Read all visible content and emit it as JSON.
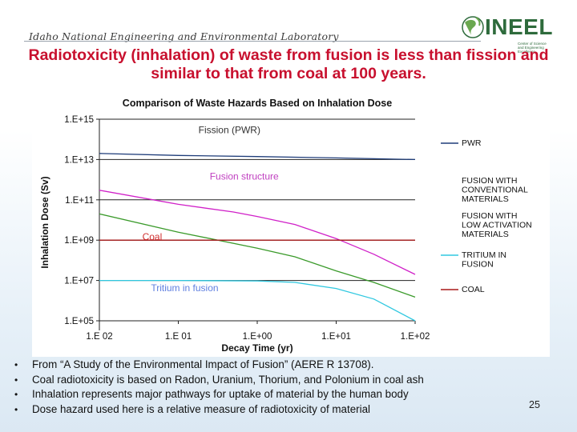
{
  "header": {
    "lab_name": "Idaho National Engineering and Environmental Laboratory",
    "logo_text": "INEEL",
    "logo_subtext": "Center of Science and Engineering Excellence"
  },
  "slide": {
    "title": "Radiotoxicity (inhalation) of waste from fusion is less than fission and similar to that from  coal at 100 years.",
    "page_number": "25"
  },
  "bullets": [
    "From “A Study of the Environmental Impact of Fusion” (AERE R 13708).",
    "Coal radiotoxicity is based on Radon, Uranium, Thorium, and Polonium in coal ash",
    "Inhalation represents major pathways for uptake of material by the human body",
    "Dose hazard used here is a relative measure of radiotoxicity of material"
  ],
  "colors": {
    "title": "#c8102e",
    "pwr": "#1f3d7a",
    "fusion_conventional": "#d020c8",
    "fusion_low_activation": "#3a9a2a",
    "tritium": "#30c8e0",
    "coal": "#a81818"
  },
  "chart_data": {
    "type": "line",
    "title": "Comparison of Waste Hazards Based on Inhalation Dose",
    "xlabel": "Decay Time (yr)",
    "ylabel": "Inhalation Dose (Sv)",
    "x_scale": "log",
    "y_scale": "log",
    "xlim": [
      0.01,
      100
    ],
    "ylim": [
      100000.0,
      1000000000000000.0
    ],
    "x_ticks": [
      0.01,
      0.1,
      1,
      10,
      100
    ],
    "x_tick_labels": [
      "1.E 02",
      "1.E 01",
      "1.E+00",
      "1.E+01",
      "1.E+02"
    ],
    "y_ticks": [
      1000000000000000.0,
      10000000000000.0,
      100000000000.0,
      1000000000.0,
      10000000.0,
      100000.0
    ],
    "y_tick_labels": [
      "1.E+15",
      "1.E+13",
      "1.E+11",
      "1.E+09",
      "1.E+07",
      "1.E+05"
    ],
    "grid": "horizontal",
    "legend_position": "right",
    "series": [
      {
        "name": "PWR",
        "key": "pwr",
        "x": [
          0.01,
          0.1,
          1,
          10,
          100
        ],
        "y": [
          20000000000000.0,
          16000000000000.0,
          14000000000000.0,
          12000000000000.0,
          10000000000000.0
        ]
      },
      {
        "name": "FUSION WITH CONVENTIONAL MATERIALS",
        "key": "fusion_conventional",
        "x": [
          0.01,
          0.1,
          0.5,
          1,
          3,
          10,
          30,
          100
        ],
        "y": [
          300000000000.0,
          60000000000.0,
          25000000000.0,
          15000000000.0,
          6000000000.0,
          1200000000.0,
          200000000.0,
          20000000.0
        ]
      },
      {
        "name": "FUSION WITH LOW ACTIVATION MATERIALS",
        "key": "fusion_low_activation",
        "x": [
          0.01,
          0.1,
          1,
          3,
          10,
          30,
          100
        ],
        "y": [
          20000000000.0,
          2500000000.0,
          400000000.0,
          150000000.0,
          30000000.0,
          8000000.0,
          1500000.0
        ]
      },
      {
        "name": "TRITIUM IN FUSION",
        "key": "tritium",
        "x": [
          0.01,
          0.1,
          1,
          3,
          10,
          30,
          100
        ],
        "y": [
          10000000.0,
          10000000.0,
          9500000.0,
          8000000.0,
          4000000.0,
          1200000.0,
          100000.0
        ]
      },
      {
        "name": "COAL",
        "key": "coal",
        "x": [
          0.01,
          100
        ],
        "y": [
          1000000000.0,
          1000000000.0
        ]
      }
    ],
    "annotations": [
      {
        "text": "Fission (PWR)",
        "x": 0.18,
        "y": 200000000000000.0,
        "color": "#333333"
      },
      {
        "text": "Fusion structure",
        "x": 0.25,
        "y": 1000000000000.0,
        "color": "#c040c0"
      },
      {
        "text": "Coal",
        "x": 0.035,
        "y": 1000000000.0,
        "color": "#d03030"
      },
      {
        "text": "Tritium in fusion",
        "x": 0.045,
        "y": 3000000.0,
        "color": "#6080e0"
      }
    ],
    "legend": [
      {
        "label": "PWR",
        "key": "pwr",
        "marker": true
      },
      {
        "label": "FUSION WITH CONVENTIONAL MATERIALS",
        "lines": [
          "FUSION WITH",
          "CONVENTIONAL",
          "MATERIALS"
        ],
        "key": "fusion_conventional",
        "marker": false
      },
      {
        "label": "FUSION WITH LOW ACTIVATION MATERIALS",
        "lines": [
          "FUSION WITH",
          "LOW ACTIVATION",
          "MATERIALS"
        ],
        "key": "fusion_low_activation",
        "marker": false
      },
      {
        "label": "TRITIUM IN FUSION",
        "lines": [
          "TRITIUM IN",
          "FUSION"
        ],
        "key": "tritium",
        "marker": true
      },
      {
        "label": "COAL",
        "key": "coal",
        "marker": true
      }
    ]
  }
}
